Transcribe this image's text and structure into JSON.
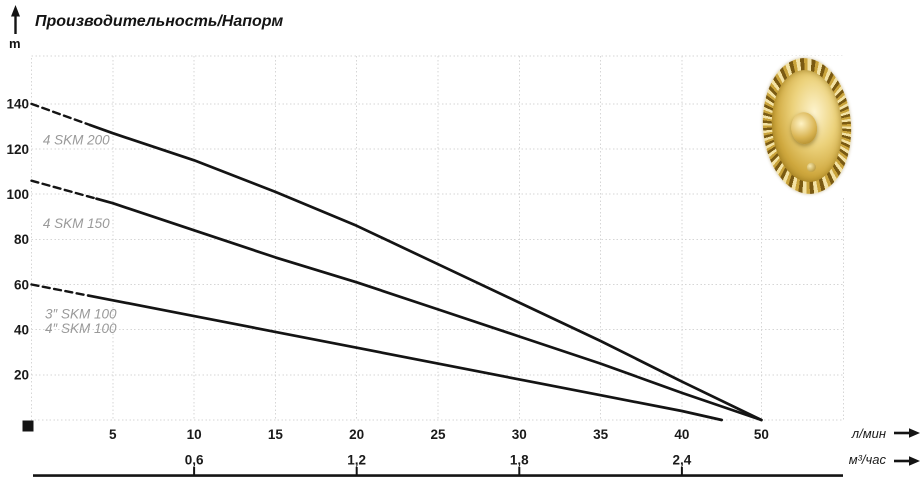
{
  "chart_data": {
    "type": "line",
    "title": "Производительность/Напорм",
    "ylabel": "m",
    "xlabel": "л/мин",
    "xlabel_secondary": "м³/час",
    "ylim": [
      0,
      161
    ],
    "grid": true,
    "y_ticks": [
      20,
      40,
      60,
      80,
      100,
      120,
      140
    ],
    "x_ticks_primary": [
      5,
      10,
      15,
      20,
      25,
      30,
      35,
      40,
      50
    ],
    "x_ticks_secondary": [
      {
        "label": "0,6",
        "q": 10
      },
      {
        "label": "1,2",
        "q": 20
      },
      {
        "label": "1,8",
        "q": 30
      },
      {
        "label": "2,4",
        "q": 40
      }
    ],
    "x_axis_note": "segment between 40 and 50 л/мин is compressed to one tick interval; 45 not labeled",
    "line_color": "#141414",
    "grid_color": "#d6d6d6",
    "series": [
      {
        "name": "4 SKM 200",
        "dashed_until_q": 3.6,
        "points": [
          [
            0,
            140
          ],
          [
            5,
            127
          ],
          [
            10,
            115
          ],
          [
            15,
            101
          ],
          [
            20,
            86
          ],
          [
            25,
            69
          ],
          [
            30,
            52
          ],
          [
            35,
            35
          ],
          [
            40,
            17
          ],
          [
            50,
            0
          ]
        ]
      },
      {
        "name": "4 SKM 150",
        "dashed_until_q": 4.0,
        "points": [
          [
            0,
            106
          ],
          [
            5,
            96
          ],
          [
            10,
            84
          ],
          [
            15,
            72
          ],
          [
            20,
            61
          ],
          [
            25,
            49
          ],
          [
            30,
            37
          ],
          [
            35,
            25
          ],
          [
            40,
            12
          ],
          [
            50,
            0
          ]
        ]
      },
      {
        "name": "3″ SKM 100 / 4″ SKM 100",
        "dashed_until_q": 3.5,
        "points": [
          [
            0,
            60
          ],
          [
            5,
            53
          ],
          [
            10,
            46
          ],
          [
            15,
            39
          ],
          [
            20,
            32
          ],
          [
            25,
            25
          ],
          [
            30,
            18
          ],
          [
            35,
            11
          ],
          [
            40,
            4
          ],
          [
            45,
            0
          ]
        ]
      }
    ],
    "series_labels": [
      {
        "text": "4 SKM 200",
        "q": 0.7,
        "h": 122
      },
      {
        "text": "4 SKM 150",
        "q": 0.7,
        "h": 85
      },
      {
        "text": "3″ SKM 100",
        "q": 0.83,
        "h": 45
      },
      {
        "text": "4″ SKM 100",
        "q": 0.83,
        "h": 38.5
      }
    ]
  }
}
